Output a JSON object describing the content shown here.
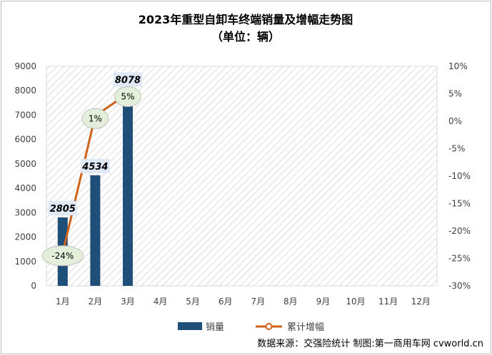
{
  "chart_data": {
    "type": "bar",
    "title": "2023年重型自卸车终端销量及增幅走势图",
    "subtitle": "（单位：辆）",
    "categories": [
      "1月",
      "2月",
      "3月",
      "4月",
      "5月",
      "6月",
      "7月",
      "8月",
      "9月",
      "10月",
      "11月",
      "12月"
    ],
    "series": [
      {
        "name": "销量",
        "type": "bar",
        "axis": "left",
        "color": "#1f4e79",
        "values": [
          2805,
          4534,
          8078,
          null,
          null,
          null,
          null,
          null,
          null,
          null,
          null,
          null
        ],
        "labels": [
          "2805",
          "4534",
          "8078"
        ]
      },
      {
        "name": "累计增幅",
        "type": "line",
        "axis": "right",
        "color": "#d0631c",
        "values": [
          -24,
          1,
          5,
          null,
          null,
          null,
          null,
          null,
          null,
          null,
          null,
          null
        ],
        "labels": [
          "-24%",
          "1%",
          "5%"
        ]
      }
    ],
    "ylim_left": [
      0,
      9000
    ],
    "yticks_left": [
      "0",
      "1000",
      "2000",
      "3000",
      "4000",
      "5000",
      "6000",
      "7000",
      "8000",
      "9000"
    ],
    "ylim_right": [
      -30,
      10
    ],
    "yticks_right": [
      "-30%",
      "-25%",
      "-20%",
      "-15%",
      "-10%",
      "-5%",
      "0%",
      "5%",
      "10%"
    ],
    "legend_position": "bottom",
    "grid": "hatched",
    "source_note": "数据来源：交强险统计 制图:第一商用车网 cvworld.cn"
  }
}
